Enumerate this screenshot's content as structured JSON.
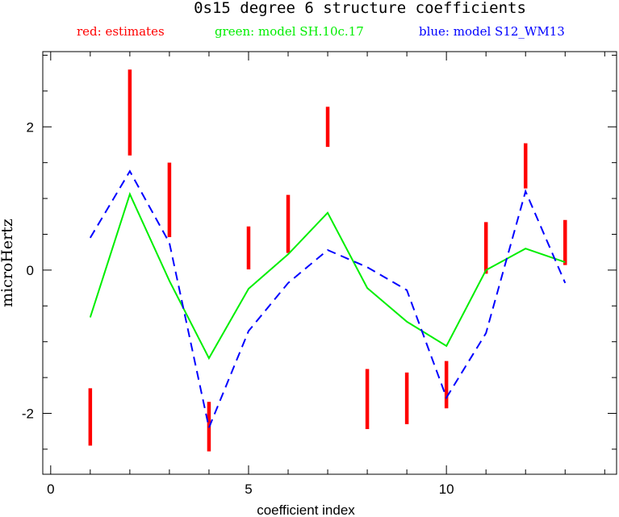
{
  "chart_data": {
    "type": "line",
    "title": "0s15 degree 6 structure coefficients",
    "legend": [
      {
        "label": "red: estimates",
        "color": "#ff0000"
      },
      {
        "label": "green: model SH.10c.17",
        "color": "#00ee00"
      },
      {
        "label": "blue: model S12_WM13",
        "color": "#0000ff"
      }
    ],
    "xlabel": "coefficient index",
    "ylabel": "microHertz",
    "xlim": [
      -0.2,
      14.3
    ],
    "ylim": [
      -2.85,
      3.05
    ],
    "xticks": [
      0,
      5,
      10
    ],
    "xtick_labels": [
      "0",
      "5",
      "10"
    ],
    "yticks": [
      -2,
      0,
      2
    ],
    "ytick_labels": [
      "-2",
      "0",
      "2"
    ],
    "grid": false,
    "series": [
      {
        "name": "estimates",
        "kind": "errorbar",
        "color": "#ff0000",
        "x": [
          1,
          2,
          3,
          4,
          5,
          6,
          7,
          8,
          9,
          10,
          11,
          12,
          13
        ],
        "low": [
          -2.45,
          1.6,
          0.46,
          -2.53,
          0.01,
          0.24,
          1.72,
          -2.22,
          -2.15,
          -1.93,
          -0.05,
          1.14,
          0.07
        ],
        "high": [
          -1.65,
          2.8,
          1.5,
          -1.84,
          0.61,
          1.05,
          2.28,
          -1.38,
          -1.43,
          -1.27,
          0.67,
          1.77,
          0.7
        ]
      },
      {
        "name": "model SH.10c.17",
        "kind": "line",
        "color": "#00ee00",
        "x": [
          1,
          2,
          3,
          4,
          5,
          6,
          7,
          8,
          9,
          10,
          11,
          12,
          13
        ],
        "y": [
          -0.66,
          1.06,
          -0.15,
          -1.23,
          -0.26,
          0.22,
          0.8,
          -0.25,
          -0.72,
          -1.06,
          0.0,
          0.3,
          0.11
        ]
      },
      {
        "name": "model S12_WM13",
        "kind": "dashed-line",
        "color": "#0000ff",
        "x": [
          1,
          2,
          3,
          4,
          5,
          6,
          7,
          8,
          9,
          10,
          11,
          12,
          13
        ],
        "y": [
          0.45,
          1.38,
          0.38,
          -2.2,
          -0.85,
          -0.18,
          0.28,
          0.04,
          -0.28,
          -1.78,
          -0.88,
          1.1,
          -0.18
        ]
      }
    ]
  }
}
